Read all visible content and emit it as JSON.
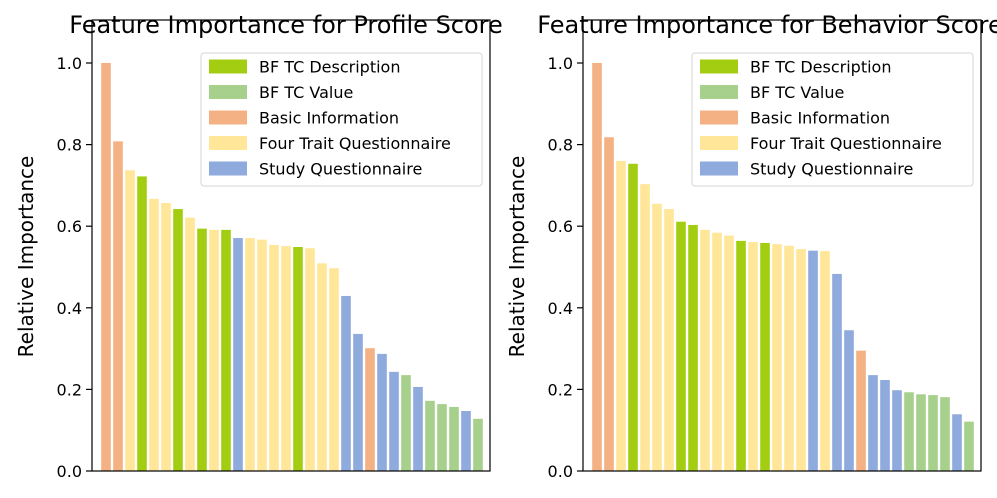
{
  "chart_data": [
    {
      "type": "bar",
      "title": "Feature Importance for Profile Score",
      "xlabel": "",
      "ylabel": "Relative Importance",
      "ylim": [
        0,
        1.0
      ],
      "yticks": [
        "0.0",
        "0.2",
        "0.4",
        "0.6",
        "0.8",
        "1.0"
      ],
      "legend_position": "top-right",
      "grid": false,
      "colors": {
        "BF TC Description": "#a3cd10",
        "BF TC Value": "#a8d08d",
        "Basic Information": "#f4b183",
        "Four Trait Questionnaire": "#ffe699",
        "Study Questionnaire": "#8faadc"
      },
      "legend": [
        "BF TC Description",
        "BF TC Value",
        "Basic Information",
        "Four Trait Questionnaire",
        "Study Questionnaire"
      ],
      "bars": [
        {
          "group": "Basic Information",
          "value": 1.0
        },
        {
          "group": "Basic Information",
          "value": 0.808
        },
        {
          "group": "Four Trait Questionnaire",
          "value": 0.737
        },
        {
          "group": "BF TC Description",
          "value": 0.722
        },
        {
          "group": "Four Trait Questionnaire",
          "value": 0.667
        },
        {
          "group": "Four Trait Questionnaire",
          "value": 0.657
        },
        {
          "group": "BF TC Description",
          "value": 0.642
        },
        {
          "group": "Four Trait Questionnaire",
          "value": 0.621
        },
        {
          "group": "BF TC Description",
          "value": 0.594
        },
        {
          "group": "Four Trait Questionnaire",
          "value": 0.591
        },
        {
          "group": "BF TC Description",
          "value": 0.591
        },
        {
          "group": "Study Questionnaire",
          "value": 0.571
        },
        {
          "group": "Four Trait Questionnaire",
          "value": 0.571
        },
        {
          "group": "Four Trait Questionnaire",
          "value": 0.567
        },
        {
          "group": "Four Trait Questionnaire",
          "value": 0.554
        },
        {
          "group": "Four Trait Questionnaire",
          "value": 0.551
        },
        {
          "group": "BF TC Description",
          "value": 0.549
        },
        {
          "group": "Four Trait Questionnaire",
          "value": 0.546
        },
        {
          "group": "Four Trait Questionnaire",
          "value": 0.509
        },
        {
          "group": "Four Trait Questionnaire",
          "value": 0.497
        },
        {
          "group": "Study Questionnaire",
          "value": 0.429
        },
        {
          "group": "Study Questionnaire",
          "value": 0.336
        },
        {
          "group": "Basic Information",
          "value": 0.301
        },
        {
          "group": "Study Questionnaire",
          "value": 0.287
        },
        {
          "group": "Study Questionnaire",
          "value": 0.243
        },
        {
          "group": "BF TC Value",
          "value": 0.235
        },
        {
          "group": "Study Questionnaire",
          "value": 0.206
        },
        {
          "group": "BF TC Value",
          "value": 0.172
        },
        {
          "group": "BF TC Value",
          "value": 0.164
        },
        {
          "group": "BF TC Value",
          "value": 0.157
        },
        {
          "group": "Study Questionnaire",
          "value": 0.147
        },
        {
          "group": "BF TC Value",
          "value": 0.128
        }
      ]
    },
    {
      "type": "bar",
      "title": "Feature Importance for Behavior Score",
      "xlabel": "",
      "ylabel": "Relative Importance",
      "ylim": [
        0,
        1.0
      ],
      "yticks": [
        "0.0",
        "0.2",
        "0.4",
        "0.6",
        "0.8",
        "1.0"
      ],
      "legend_position": "top-right",
      "grid": false,
      "colors": {
        "BF TC Description": "#a3cd10",
        "BF TC Value": "#a8d08d",
        "Basic Information": "#f4b183",
        "Four Trait Questionnaire": "#ffe699",
        "Study Questionnaire": "#8faadc"
      },
      "legend": [
        "BF TC Description",
        "BF TC Value",
        "Basic Information",
        "Four Trait Questionnaire",
        "Study Questionnaire"
      ],
      "bars": [
        {
          "group": "Basic Information",
          "value": 1.0
        },
        {
          "group": "Basic Information",
          "value": 0.818
        },
        {
          "group": "Four Trait Questionnaire",
          "value": 0.76
        },
        {
          "group": "BF TC Description",
          "value": 0.753
        },
        {
          "group": "Four Trait Questionnaire",
          "value": 0.703
        },
        {
          "group": "Four Trait Questionnaire",
          "value": 0.655
        },
        {
          "group": "Four Trait Questionnaire",
          "value": 0.642
        },
        {
          "group": "BF TC Description",
          "value": 0.611
        },
        {
          "group": "BF TC Description",
          "value": 0.603
        },
        {
          "group": "Four Trait Questionnaire",
          "value": 0.591
        },
        {
          "group": "Four Trait Questionnaire",
          "value": 0.584
        },
        {
          "group": "Four Trait Questionnaire",
          "value": 0.577
        },
        {
          "group": "BF TC Description",
          "value": 0.564
        },
        {
          "group": "Four Trait Questionnaire",
          "value": 0.561
        },
        {
          "group": "BF TC Description",
          "value": 0.559
        },
        {
          "group": "Four Trait Questionnaire",
          "value": 0.556
        },
        {
          "group": "Four Trait Questionnaire",
          "value": 0.552
        },
        {
          "group": "Four Trait Questionnaire",
          "value": 0.544
        },
        {
          "group": "Study Questionnaire",
          "value": 0.54
        },
        {
          "group": "Four Trait Questionnaire",
          "value": 0.539
        },
        {
          "group": "Study Questionnaire",
          "value": 0.483
        },
        {
          "group": "Study Questionnaire",
          "value": 0.345
        },
        {
          "group": "Basic Information",
          "value": 0.295
        },
        {
          "group": "Study Questionnaire",
          "value": 0.235
        },
        {
          "group": "Study Questionnaire",
          "value": 0.223
        },
        {
          "group": "Study Questionnaire",
          "value": 0.198
        },
        {
          "group": "BF TC Value",
          "value": 0.193
        },
        {
          "group": "BF TC Value",
          "value": 0.188
        },
        {
          "group": "BF TC Value",
          "value": 0.186
        },
        {
          "group": "BF TC Value",
          "value": 0.181
        },
        {
          "group": "Study Questionnaire",
          "value": 0.139
        },
        {
          "group": "BF TC Value",
          "value": 0.121
        }
      ]
    }
  ]
}
